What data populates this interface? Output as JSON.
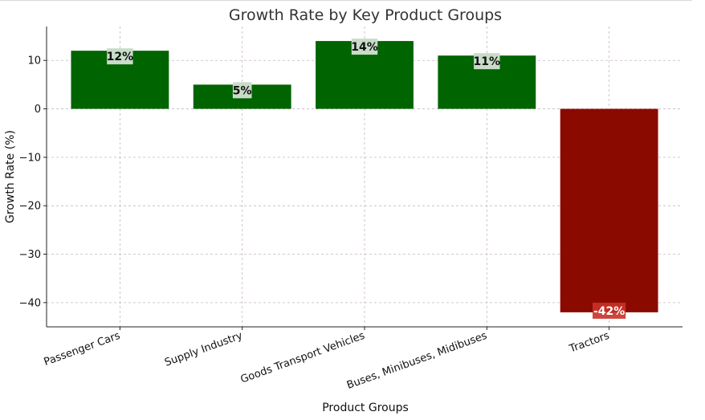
{
  "chart_data": {
    "type": "bar",
    "title": "Growth Rate by Key Product Groups",
    "xlabel": "Product Groups",
    "ylabel": "Growth Rate (%)",
    "categories": [
      "Passenger Cars",
      "Supply Industry",
      "Goods Transport Vehicles",
      "Buses, Minibuses, Midibuses",
      "Tractors"
    ],
    "values": [
      12,
      5,
      14,
      11,
      -42
    ],
    "data_labels": [
      "12%",
      "5%",
      "14%",
      "11%",
      "-42%"
    ],
    "ylim": [
      -45,
      17
    ],
    "yticks": [
      10,
      0,
      -10,
      -20,
      -30,
      -40
    ],
    "ytick_labels": [
      "10",
      "0",
      "−10",
      "−20",
      "−30",
      "−40"
    ],
    "grid": true,
    "colors": {
      "positive": "#006400",
      "negative": "#8b0a00",
      "positive_label_bg": "#c8dcc8",
      "negative_label_bg": "#c83228",
      "grid": "#c8b4c8"
    }
  }
}
